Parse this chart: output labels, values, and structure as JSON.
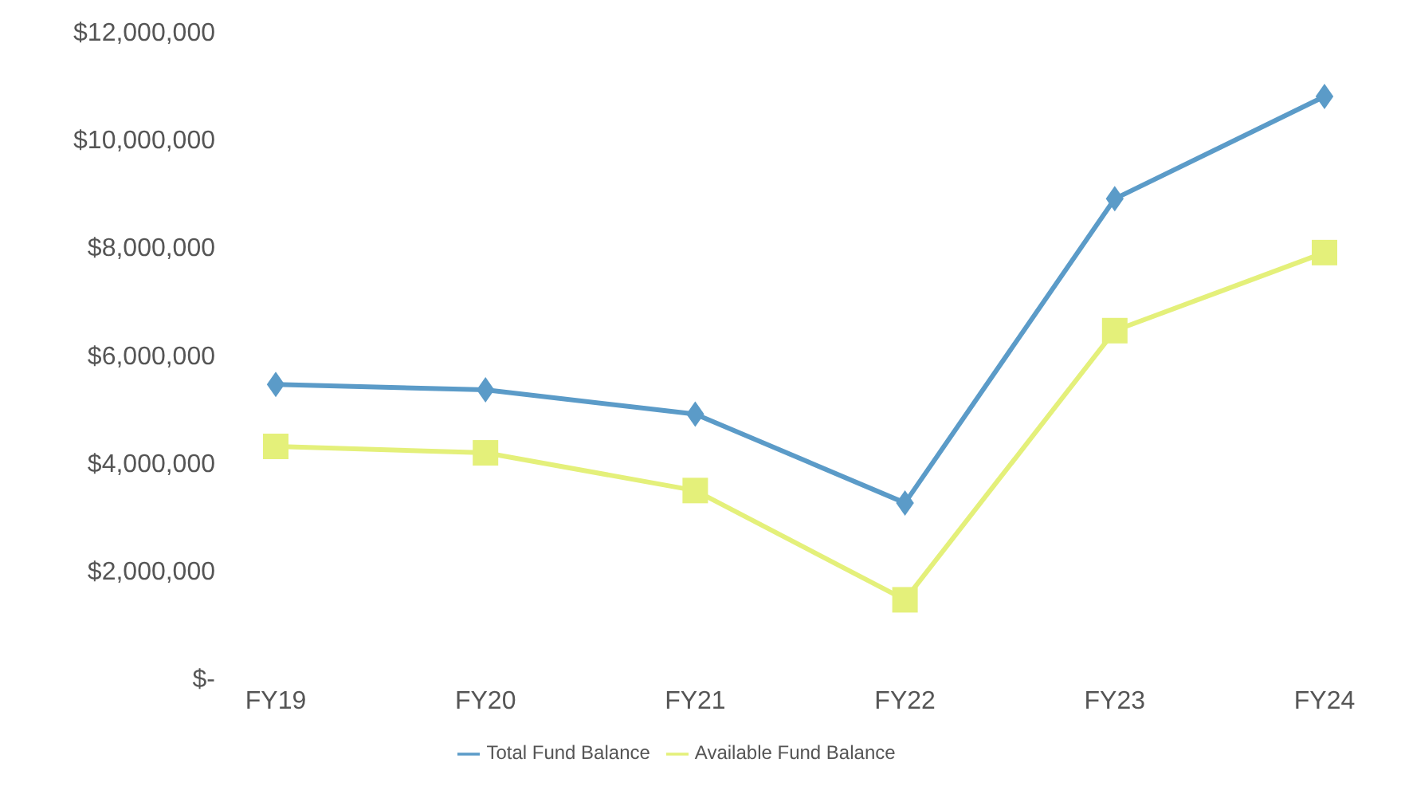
{
  "chart_data": {
    "type": "line",
    "categories": [
      "FY19",
      "FY20",
      "FY21",
      "FY22",
      "FY23",
      "FY24"
    ],
    "series": [
      {
        "name": "Total Fund Balance",
        "color": "#5b9bc8",
        "marker": "diamond",
        "values": [
          5450000,
          5350000,
          4900000,
          3250000,
          8900000,
          10800000
        ]
      },
      {
        "name": "Available Fund Balance",
        "color": "#e4f07a",
        "marker": "square",
        "values": [
          4300000,
          4180000,
          3480000,
          1450000,
          6450000,
          7900000
        ]
      }
    ],
    "ylim": [
      0,
      12000000
    ],
    "yticks": [
      {
        "value": 0,
        "label": "$-"
      },
      {
        "value": 2000000,
        "label": "$2,000,000"
      },
      {
        "value": 4000000,
        "label": "$4,000,000"
      },
      {
        "value": 6000000,
        "label": "$6,000,000"
      },
      {
        "value": 8000000,
        "label": "$8,000,000"
      },
      {
        "value": 10000000,
        "label": "$10,000,000"
      },
      {
        "value": 12000000,
        "label": "$12,000,000"
      }
    ],
    "grid": false,
    "legend": "bottom"
  }
}
